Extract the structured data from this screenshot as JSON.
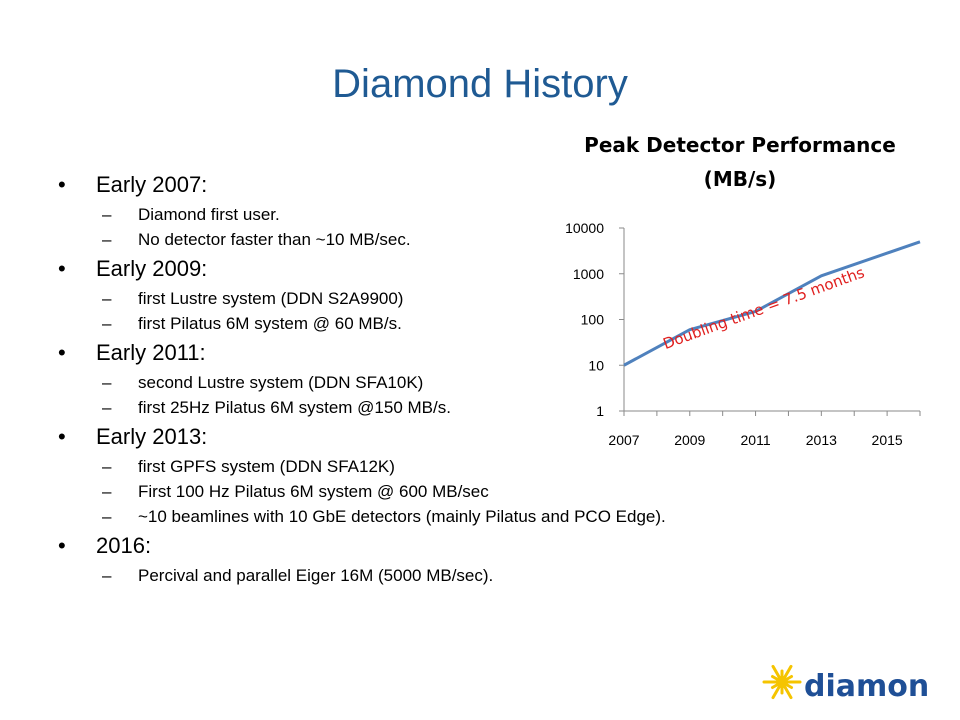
{
  "slide": {
    "title": "Diamond History"
  },
  "bullets": [
    {
      "heading": "Early 2007:",
      "items": [
        "Diamond first user.",
        "No detector faster than ~10 MB/sec."
      ]
    },
    {
      "heading": "Early 2009:",
      "items": [
        "first Lustre system (DDN S2A9900)",
        "first Pilatus 6M system @ 60 MB/s."
      ]
    },
    {
      "heading": "Early 2011:",
      "items": [
        "second Lustre system (DDN SFA10K)",
        "first 25Hz Pilatus 6M system @150 MB/s."
      ]
    },
    {
      "heading": "Early 2013:",
      "items": [
        "first GPFS system (DDN SFA12K)",
        "First 100 Hz Pilatus 6M system @ 600 MB/sec",
        "~10 beamlines with 10 GbE detectors (mainly Pilatus and PCO Edge)."
      ]
    },
    {
      "heading": "2016:",
      "items": [
        "Percival and parallel Eiger 16M (5000 MB/sec)."
      ]
    }
  ],
  "chart_data": {
    "type": "line",
    "title_line1": "Peak Detector Performance",
    "title_line2": "(MB/s)",
    "xlabel": "",
    "ylabel": "",
    "y_scale": "log",
    "ylim": [
      1,
      10000
    ],
    "xlim": [
      2007,
      2016
    ],
    "x_ticks": [
      "2007",
      "2009",
      "2011",
      "2013",
      "2015"
    ],
    "y_ticks": [
      "1",
      "10",
      "100",
      "1000",
      "10000"
    ],
    "series": [
      {
        "x": [
          2007,
          2009,
          2011,
          2013,
          2016
        ],
        "values": [
          10,
          60,
          150,
          900,
          5000
        ],
        "color": "#4f81bd"
      }
    ],
    "annotation": {
      "text": "Doubling time = 7.5 months",
      "color": "#e0201f"
    },
    "grid": false
  },
  "logo": {
    "text": "diamond",
    "text_color": "#1f4f96",
    "star_color": "#f5c400"
  }
}
